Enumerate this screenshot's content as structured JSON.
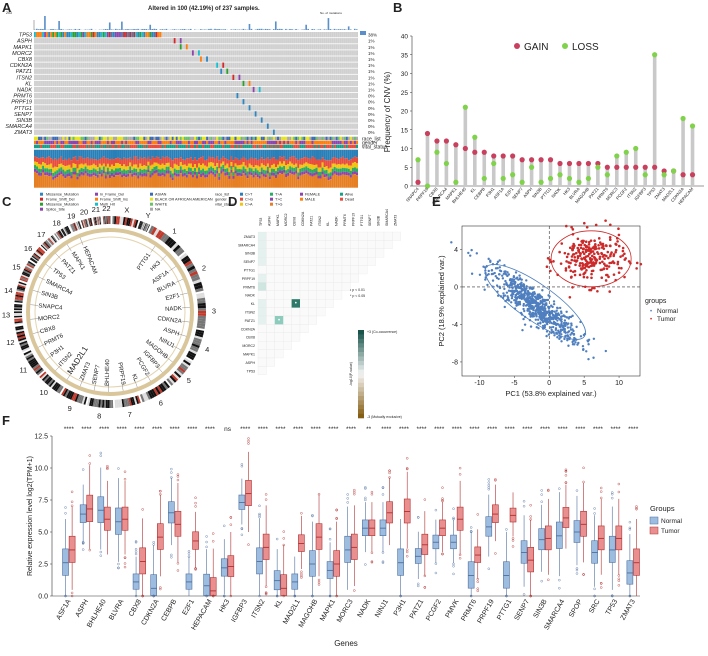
{
  "panels": {
    "A": "A",
    "B": "B",
    "C": "C",
    "D": "D",
    "E": "E",
    "F": "F"
  },
  "panelA": {
    "title": "Altered in 100 (42.19%) of 237 samples.",
    "genes": [
      "TP53",
      "ASPH",
      "MAPK1",
      "MORC2",
      "CBX8",
      "CDKN2A",
      "PATZ1",
      "ITSN2",
      "KL",
      "NADK",
      "PRMT6",
      "PRPF19",
      "PTTG1",
      "SENP7",
      "SIN3B",
      "SMARCA4",
      "ZMAT3"
    ],
    "percents": [
      "38%",
      "1%",
      "1%",
      "1%",
      "1%",
      "1%",
      "1%",
      "1%",
      "1%",
      "1%",
      "0%",
      "0%",
      "0%",
      "0%",
      "0%",
      "0%",
      "0%"
    ],
    "clinical_tracks": [
      "race_list",
      "gender",
      "vital_status"
    ],
    "ymax_label": "203",
    "no_mut_label": "No. of mutations",
    "legend": {
      "mutation": [
        "Missense_Mutation",
        "Frame_Shift_Del",
        "Missense_Mutation",
        "Splice_Site"
      ],
      "mutation2": [
        "In_Frame_Del",
        "Frame_Shift_Ins",
        "Multi_Hit"
      ],
      "race": [
        "ASIAN",
        "BLACK OR AFRICAN AMERICAN",
        "WHITE",
        "NA"
      ],
      "gender": [
        "FEMALE",
        "MALE"
      ],
      "vital": [
        "Alive",
        "Dead"
      ],
      "track_labels": [
        "race_list",
        "gender",
        "vital_status"
      ],
      "counts": [
        "C>T",
        "C>G",
        "C>A",
        "T>A",
        "T>C",
        "T>G"
      ]
    }
  },
  "panelB": {
    "legend_gain": "GAIN",
    "legend_loss": "LOSS",
    "ylabel": "Frequency of CNV (%)",
    "yticks": [
      "0",
      "5",
      "10",
      "15",
      "20",
      "25",
      "30",
      "35",
      "40"
    ],
    "colors": {
      "gain": "#c8405e",
      "loss": "#7fd24a",
      "stem": "#c9c9c9"
    },
    "chart_data": {
      "type": "scatter",
      "ylim": [
        0,
        40
      ],
      "categories": [
        "SNAPC4",
        "PRPF19",
        "CBX8",
        "SMARCA4",
        "MAPK1",
        "BHLHE40",
        "KL",
        "CEBPB",
        "P3H1",
        "ASF1A",
        "E2F1",
        "SENP7",
        "ASPH",
        "SIN3B",
        "PTTG1",
        "NADK",
        "HK3",
        "BLVRA",
        "MAGOHB",
        "PATZ1",
        "PRMT6",
        "MORC3",
        "PCGF2",
        "ITSN2",
        "IGFBP3",
        "TP53",
        "ZMAT3",
        "MAD2L1",
        "CDKN2A",
        "HEPACAM"
      ],
      "series": [
        {
          "name": "GAIN",
          "values": [
            1,
            14,
            12,
            12,
            11,
            10,
            9,
            9,
            8,
            8,
            8,
            7,
            7,
            7,
            7,
            6,
            6,
            6,
            6,
            6,
            5,
            5,
            5,
            5,
            5,
            5,
            4,
            4,
            3,
            3
          ]
        },
        {
          "name": "LOSS",
          "values": [
            7,
            0,
            9,
            6,
            1,
            21,
            13,
            2,
            6,
            2,
            3,
            1,
            5,
            1,
            2,
            3,
            2,
            1,
            2,
            5,
            3,
            8,
            9,
            10,
            3,
            35,
            3,
            4,
            18,
            16
          ]
        }
      ]
    }
  },
  "panelC": {
    "chromosomes": [
      "1",
      "2",
      "3",
      "4",
      "5",
      "6",
      "7",
      "8",
      "9",
      "10",
      "11",
      "12",
      "13",
      "14",
      "15",
      "16",
      "17",
      "18",
      "19",
      "20",
      "21",
      "22",
      "X",
      "Y"
    ],
    "genes": [
      "PTTG1",
      "HK3",
      "ASF1A",
      "BLVRA",
      "E2F1",
      "NADK",
      "CDKN2A",
      "ASPH",
      "NINJ1",
      "MAGOHB",
      "IGFBP3",
      "PCGF2",
      "KL",
      "PRPF19",
      "BHLHE40",
      "SENP7",
      "ZMAT3",
      "MAD2L1",
      "ITSN2",
      "P3H1",
      "PRMT6",
      "CBX8",
      "MORC2",
      "SNAPC4",
      "SIN3B",
      "SMARCA4",
      "TP53",
      "PATZ1",
      "MAPK1",
      "HEPACAM"
    ],
    "highlight": "MAD2L1"
  },
  "panelD": {
    "genes_cols": [
      "TP53",
      "ASPH",
      "MAPK1",
      "MORC2",
      "CBX8",
      "CDKN2A",
      "PATZ1",
      "ITSN2",
      "KL",
      "NADK",
      "PRMT6",
      "PRPF19",
      "PTTG1",
      "SENP7",
      "SIN3B",
      "SMARCA4",
      "ZMAT3"
    ],
    "genes_rows": [
      "ZMAT3",
      "SMARCA4",
      "SIN3B",
      "SENP7",
      "PTTG1",
      "PRPF19",
      "PRMT6",
      "NADK",
      "KL",
      "ITSN2",
      "PATZ1",
      "CDKN2A",
      "CBX8",
      "MORC2",
      "MAPK1",
      "ASPH",
      "TP53"
    ],
    "legend_top": "+3 (Co-occurrence)",
    "legend_bottom": "-3 (Mutually exclusive)",
    "legend_axis": "-log10(P-value)",
    "p1": "• p < 0.01",
    "p2": "* p < 0.05"
  },
  "panelE": {
    "xlabel": "PC1 (53.8% explained var.)",
    "ylabel": "PC2 (18.9% explained var.)",
    "xticks": [
      "-10",
      "-5",
      "0",
      "5",
      "10"
    ],
    "yticks": [
      "4",
      "0",
      "-4",
      "-8"
    ],
    "legend_title": "groups",
    "groups": [
      "Normal",
      "Tumor"
    ],
    "colors": {
      "Normal": "#4f7fbf",
      "Tumor": "#cc2a2a"
    }
  },
  "panelF": {
    "ylabel": "Relative expression level log2(TPM+1)",
    "xlabel": "Genes",
    "yticks": [
      "0.0",
      "2.5",
      "5.0",
      "7.5",
      "10.0",
      "12.5"
    ],
    "legend_title": "Groups",
    "groups": [
      "Normal",
      "Tumor"
    ],
    "colors": {
      "Normal": "#9dbde0",
      "Tumor": "#e98f8f",
      "NormalEdge": "#4f6f9f",
      "TumorEdge": "#b03030"
    },
    "chart_data": {
      "type": "box",
      "ylim": [
        0,
        12.5
      ],
      "categories": [
        "ASF1A",
        "ASPH",
        "BHLHE40",
        "BLVRA",
        "CBX8",
        "CDKN2A",
        "CEBPB",
        "E2F1",
        "HEPACAM",
        "HK3",
        "IGFBP3",
        "ITSN2",
        "KL",
        "MAD2L1",
        "MAGOHB",
        "MAPK1",
        "MORC3",
        "NADK",
        "NINJ1",
        "P3H1",
        "PATZ1",
        "PCGF2",
        "PMVK",
        "PRMT6",
        "PRPF19",
        "PTTG1",
        "SENP7",
        "SIN3B",
        "SMARCA4",
        "SPOP",
        "SRC",
        "TP53",
        "ZMAT3"
      ],
      "significance": [
        "****",
        "****",
        "****",
        "****",
        "****",
        "****",
        "****",
        "****",
        "****",
        "ns",
        "****",
        "****",
        "****",
        "****",
        "****",
        "****",
        "****",
        "**",
        "****",
        "****",
        "****",
        "****",
        "****",
        "****",
        "****",
        "****",
        "****",
        "****",
        "****",
        "****",
        "****",
        "****",
        "****"
      ],
      "normal_median": [
        2.6,
        6.4,
        6.7,
        5.8,
        1.1,
        0.6,
        6.5,
        1.1,
        0.8,
        2.2,
        7.3,
        2.7,
        1.2,
        1.1,
        2.5,
        2.0,
        3.6,
        5.3,
        5.3,
        2.6,
        3.1,
        4.2,
        4.2,
        1.6,
        5.4,
        1.6,
        3.4,
        4.4,
        4.7,
        5.0,
        3.4,
        3.6,
        1.8
      ],
      "tumor_median": [
        3.6,
        6.8,
        6.0,
        6.0,
        2.7,
        4.6,
        5.6,
        4.3,
        0.4,
        2.3,
        8.0,
        3.8,
        0.6,
        4.1,
        4.6,
        2.5,
        3.8,
        5.3,
        6.5,
        6.6,
        4.0,
        5.3,
        6.0,
        3.2,
        6.4,
        6.3,
        2.8,
        4.5,
        6.1,
        5.6,
        4.5,
        4.5,
        2.6
      ]
    }
  }
}
